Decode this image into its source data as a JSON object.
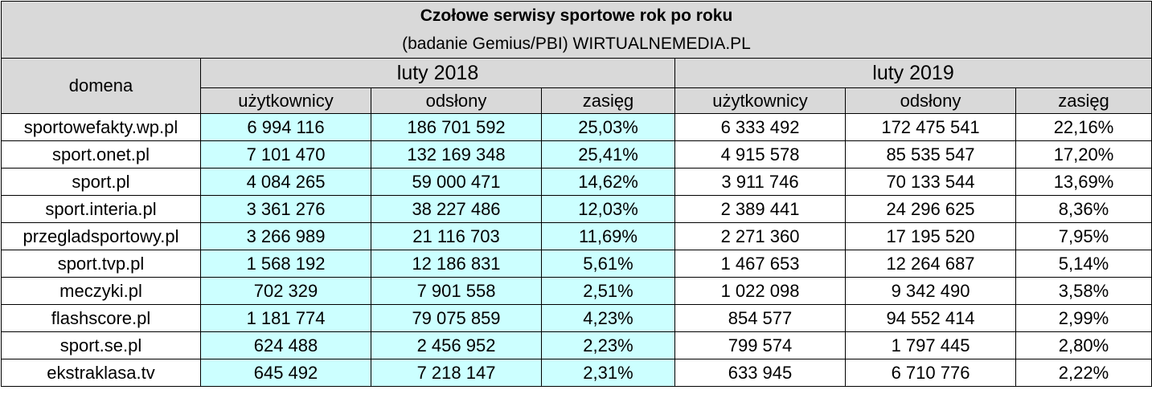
{
  "chart_data": {
    "type": "table",
    "title": "Czołowe serwisy sportowe rok po roku",
    "subtitle": "(badanie Gemius/PBI) WIRTUALNEMEDIA.PL",
    "domain_header": "domena",
    "periods": [
      "luty 2018",
      "luty 2019"
    ],
    "metrics": [
      "użytkownicy",
      "odsłony",
      "zasięg"
    ],
    "highlight_color": "#ccffff",
    "header_color": "#d9d9d9",
    "rows": [
      {
        "domain": "sportowefakty.wp.pl",
        "values": [
          "6 994 116",
          "186 701 592",
          "25,03%",
          "6 333 492",
          "172 475 541",
          "22,16%"
        ]
      },
      {
        "domain": "sport.onet.pl",
        "values": [
          "7 101 470",
          "132 169 348",
          "25,41%",
          "4 915 578",
          "85 535 547",
          "17,20%"
        ]
      },
      {
        "domain": "sport.pl",
        "values": [
          "4 084 265",
          "59 000 471",
          "14,62%",
          "3 911 746",
          "70 133 544",
          "13,69%"
        ]
      },
      {
        "domain": "sport.interia.pl",
        "values": [
          "3 361 276",
          "38 227 486",
          "12,03%",
          "2 389 441",
          "24 296 625",
          "8,36%"
        ]
      },
      {
        "domain": "przegladsportowy.pl",
        "values": [
          "3 266 989",
          "21 116 703",
          "11,69%",
          "2 271 360",
          "17 195 520",
          "7,95%"
        ]
      },
      {
        "domain": "sport.tvp.pl",
        "values": [
          "1 568 192",
          "12 186 831",
          "5,61%",
          "1 467 653",
          "12 264 687",
          "5,14%"
        ]
      },
      {
        "domain": "meczyki.pl",
        "values": [
          "702 329",
          "7 901 558",
          "2,51%",
          "1 022 098",
          "9 342 490",
          "3,58%"
        ]
      },
      {
        "domain": "flashscore.pl",
        "values": [
          "1 181 774",
          "79 075 859",
          "4,23%",
          "854 577",
          "94 552 414",
          "2,99%"
        ]
      },
      {
        "domain": "sport.se.pl",
        "values": [
          "624 488",
          "2 456 952",
          "2,23%",
          "799 574",
          "1 797 445",
          "2,80%"
        ]
      },
      {
        "domain": "ekstraklasa.tv",
        "values": [
          "645 492",
          "7 218 147",
          "2,31%",
          "633 945",
          "6 710 776",
          "2,22%"
        ]
      }
    ]
  }
}
